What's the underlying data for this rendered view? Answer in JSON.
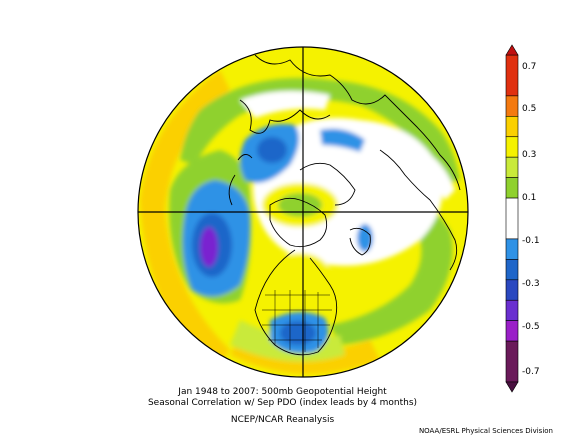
{
  "figure": {
    "title_line1": "Jan 1948 to 2007: 500mb Geopotential Height",
    "title_line2": "Seasonal Correlation w/ Sep PDO (index leads by 4 months)",
    "subtitle": "NCEP/NCAR Reanalysis",
    "credit": "NOAA/ESRL Physical Sciences Division"
  },
  "colorbar": {
    "labels": [
      "0.7",
      "0.5",
      "0.3",
      "0.1",
      "-0.1",
      "-0.3",
      "-0.5",
      "-0.7"
    ],
    "bins": [
      {
        "from": 0.6,
        "to": 0.8,
        "color": "#e03010"
      },
      {
        "from": 0.5,
        "to": 0.6,
        "color": "#f47a10"
      },
      {
        "from": 0.4,
        "to": 0.5,
        "color": "#fbd000"
      },
      {
        "from": 0.3,
        "to": 0.4,
        "color": "#f5f200"
      },
      {
        "from": 0.2,
        "to": 0.3,
        "color": "#c9ea3a"
      },
      {
        "from": 0.1,
        "to": 0.2,
        "color": "#8fd12e"
      },
      {
        "from": -0.1,
        "to": 0.1,
        "color": "#ffffff"
      },
      {
        "from": -0.2,
        "to": -0.1,
        "color": "#2f92e6"
      },
      {
        "from": -0.3,
        "to": -0.2,
        "color": "#1f66c9"
      },
      {
        "from": -0.4,
        "to": -0.3,
        "color": "#2a48c0"
      },
      {
        "from": -0.5,
        "to": -0.4,
        "color": "#6a2fd0"
      },
      {
        "from": -0.6,
        "to": -0.5,
        "color": "#9a1fc8"
      },
      {
        "from": -0.8,
        "to": -0.6,
        "color": "#6a1a5a"
      }
    ]
  },
  "palette": {
    "yellow": "#f5f200",
    "gold": "#fbd000",
    "green": "#8fd12e",
    "lightgreen": "#c9ea3a",
    "blue": "#2f92e6",
    "darkblue": "#1f66c9",
    "purple": "#7a24d0"
  }
}
